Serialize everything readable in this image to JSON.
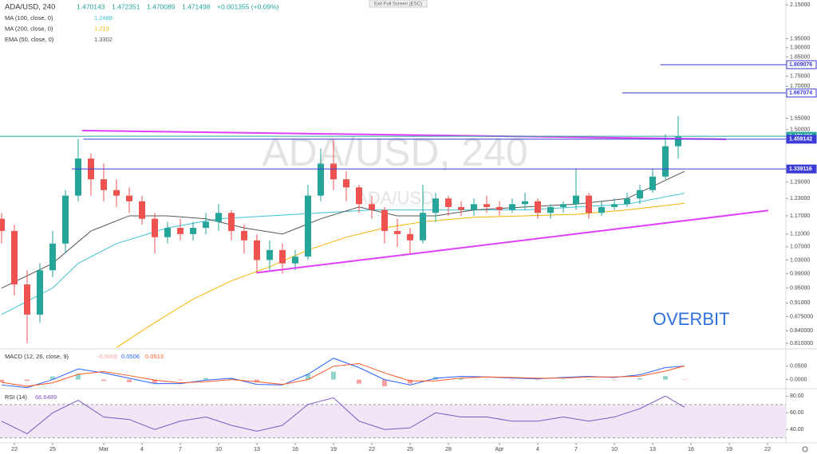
{
  "ui": {
    "exit_button": "Exit Full Screen (ESC)"
  },
  "chart_data": [
    {
      "type": "candlestick",
      "title": "ADA/USD, 240",
      "symbol": "ADA/USD",
      "ohlc": [
        1.470143,
        1.472351,
        1.470089,
        1.471498
      ],
      "change": "+0.001355 (+0.09%)",
      "annotation": "OVERBIT",
      "annotation_color": "#2f6fdc",
      "log_scale": true,
      "grid": false,
      "up_color": "#26a69a",
      "down_color": "#ef5350",
      "x": [
        -1,
        0,
        1,
        2,
        3,
        4,
        5,
        6,
        7,
        8,
        9,
        10,
        11,
        12,
        13,
        14,
        15,
        16,
        17,
        18,
        19,
        20,
        21,
        22,
        23,
        24,
        25,
        26,
        27,
        28,
        29,
        30,
        31,
        32,
        33,
        34,
        35,
        36,
        37,
        38,
        39,
        40,
        41,
        42,
        43,
        44,
        45,
        46,
        47,
        48,
        49,
        50,
        51,
        52
      ],
      "open": [
        1.16,
        1.12,
        0.96,
        0.88,
        1.0,
        1.08,
        1.24,
        1.38,
        1.3,
        1.26,
        1.24,
        1.22,
        1.16,
        1.1,
        1.13,
        1.11,
        1.13,
        1.15,
        1.18,
        1.12,
        1.09,
        1.03,
        1.06,
        1.02,
        1.04,
        1.24,
        1.36,
        1.3,
        1.27,
        1.21,
        1.19,
        1.12,
        1.11,
        1.09,
        1.18,
        1.23,
        1.2,
        1.19,
        1.21,
        1.2,
        1.19,
        1.21,
        1.22,
        1.18,
        1.2,
        1.21,
        1.24,
        1.18,
        1.2,
        1.21,
        1.23,
        1.26,
        1.31,
        1.43
      ],
      "high": [
        1.18,
        1.14,
        1.0,
        1.02,
        1.12,
        1.26,
        1.46,
        1.4,
        1.36,
        1.3,
        1.27,
        1.24,
        1.18,
        1.15,
        1.16,
        1.15,
        1.18,
        1.21,
        1.19,
        1.14,
        1.11,
        1.09,
        1.08,
        1.06,
        1.28,
        1.42,
        1.46,
        1.33,
        1.28,
        1.24,
        1.2,
        1.16,
        1.13,
        1.28,
        1.25,
        1.24,
        1.22,
        1.23,
        1.24,
        1.22,
        1.23,
        1.25,
        1.23,
        1.21,
        1.22,
        1.34,
        1.25,
        1.22,
        1.23,
        1.25,
        1.28,
        1.34,
        1.48,
        1.56
      ],
      "low": [
        1.08,
        0.93,
        0.81,
        0.86,
        0.98,
        1.05,
        1.22,
        1.24,
        1.22,
        1.2,
        1.18,
        1.14,
        1.05,
        1.08,
        1.09,
        1.09,
        1.11,
        1.12,
        1.09,
        1.05,
        0.99,
        1.0,
        0.99,
        1.0,
        1.03,
        1.22,
        1.26,
        1.22,
        1.18,
        1.16,
        1.08,
        1.07,
        1.05,
        1.08,
        1.15,
        1.17,
        1.17,
        1.17,
        1.18,
        1.17,
        1.18,
        1.19,
        1.16,
        1.16,
        1.18,
        1.19,
        1.16,
        1.17,
        1.19,
        1.2,
        1.21,
        1.25,
        1.3,
        1.38
      ],
      "close": [
        1.12,
        0.96,
        0.88,
        1.0,
        1.08,
        1.24,
        1.38,
        1.3,
        1.26,
        1.24,
        1.22,
        1.16,
        1.1,
        1.13,
        1.11,
        1.13,
        1.15,
        1.18,
        1.12,
        1.09,
        1.03,
        1.06,
        1.02,
        1.04,
        1.24,
        1.36,
        1.3,
        1.27,
        1.21,
        1.19,
        1.12,
        1.11,
        1.09,
        1.18,
        1.23,
        1.2,
        1.19,
        1.21,
        1.2,
        1.19,
        1.21,
        1.22,
        1.18,
        1.2,
        1.21,
        1.24,
        1.18,
        1.2,
        1.21,
        1.23,
        1.26,
        1.31,
        1.43,
        1.47
      ],
      "xlim": [
        -1.125,
        60.4375
      ],
      "ylim": [
        0.799,
        2.18
      ],
      "yticks": [
        {
          "value": 2.15,
          "label": "2.15000"
        },
        {
          "value": 1.95,
          "label": "1.95000"
        },
        {
          "value": 1.9,
          "label": "1.90000"
        },
        {
          "value": 1.85,
          "label": "1.85000"
        },
        {
          "value": 1.75,
          "label": "1.75000"
        },
        {
          "value": 1.7,
          "label": "1.70000"
        },
        {
          "value": 1.55,
          "label": "1.55000"
        },
        {
          "value": 1.5,
          "label": "1.50000"
        },
        {
          "value": 1.29,
          "label": "1.29000"
        },
        {
          "value": 1.23,
          "label": "1.23000"
        },
        {
          "value": 1.17,
          "label": "1.17000"
        },
        {
          "value": 1.11,
          "label": "1.11000"
        },
        {
          "value": 1.07,
          "label": "1.07000"
        },
        {
          "value": 1.03,
          "label": "1.03000"
        },
        {
          "value": 0.99,
          "label": "0.99000"
        },
        {
          "value": 0.95,
          "label": "0.95000"
        },
        {
          "value": 0.91,
          "label": "0.91000"
        },
        {
          "value": 0.875,
          "label": "0.875000"
        },
        {
          "value": 0.84,
          "label": "0.840000"
        },
        {
          "value": 0.81,
          "label": "0.810000"
        }
      ],
      "xticks": [
        {
          "value": 0,
          "label": "22"
        },
        {
          "value": 3,
          "label": "25"
        },
        {
          "value": 7,
          "label": "Mar"
        },
        {
          "value": 10,
          "label": "4"
        },
        {
          "value": 13,
          "label": "7"
        },
        {
          "value": 16,
          "label": "10"
        },
        {
          "value": 19,
          "label": "13"
        },
        {
          "value": 22,
          "label": "16"
        },
        {
          "value": 25,
          "label": "19"
        },
        {
          "value": 28,
          "label": "22"
        },
        {
          "value": 31,
          "label": "25"
        },
        {
          "value": 34,
          "label": "28"
        },
        {
          "value": 38,
          "label": "Apr"
        },
        {
          "value": 41,
          "label": "4"
        },
        {
          "value": 44,
          "label": "7"
        },
        {
          "value": 47,
          "label": "10"
        },
        {
          "value": 50,
          "label": "13"
        },
        {
          "value": 53,
          "label": "16"
        },
        {
          "value": 56,
          "label": "19"
        },
        {
          "value": 59,
          "label": "22"
        }
      ],
      "lines": [
        {
          "name": "MA (100, close, 0)",
          "color": "#3bc3d6",
          "x": [
            -1,
            3,
            5,
            8,
            12,
            16,
            20,
            24,
            28,
            32,
            36,
            40,
            44,
            48,
            52.5
          ],
          "values": [
            0.88,
            0.95,
            1.02,
            1.08,
            1.13,
            1.16,
            1.17,
            1.18,
            1.19,
            1.19,
            1.19,
            1.19,
            1.2,
            1.21,
            1.2488
          ]
        },
        {
          "name": "MA (200, close, 0)",
          "color": "#f5b400",
          "x": [
            8,
            11,
            14,
            17,
            20,
            23,
            26,
            29,
            32,
            36,
            40,
            44,
            48,
            52.5
          ],
          "values": [
            0.8,
            0.86,
            0.92,
            0.97,
            1.01,
            1.06,
            1.1,
            1.13,
            1.15,
            1.165,
            1.17,
            1.175,
            1.19,
            1.213
          ]
        },
        {
          "name": "EMA (50, close, 0)",
          "color": "#555555",
          "x": [
            -1,
            3,
            6,
            9,
            12,
            15,
            18,
            21,
            24,
            27,
            30,
            33,
            36,
            40,
            44,
            48,
            52.5
          ],
          "values": [
            0.95,
            1.02,
            1.12,
            1.17,
            1.17,
            1.16,
            1.13,
            1.11,
            1.16,
            1.2,
            1.17,
            1.17,
            1.19,
            1.2,
            1.21,
            1.23,
            1.3302
          ]
        }
      ],
      "trendlines": [
        {
          "color": "#e040fb",
          "x": [
            5.3,
            55.75
          ],
          "values": [
            1.496,
            1.459
          ]
        },
        {
          "color": "#e040fb",
          "x": [
            19,
            59.06
          ],
          "values": [
            0.993,
            1.188
          ]
        }
      ],
      "price_lines": [
        {
          "value": 1.809076,
          "start": 50.6,
          "color": "#3b3bd6",
          "label_style": "outline"
        },
        {
          "value": 1.667074,
          "start": 47.6,
          "color": "#3b3bd6",
          "label_style": "outline"
        },
        {
          "value": 1.471498,
          "start": -1.125,
          "color": "#26a69a",
          "label_style": "filled"
        },
        {
          "value": 1.459142,
          "start": 5.4,
          "color": "#3b3bd6",
          "label_style": "filled"
        },
        {
          "value": 1.339116,
          "start": 4.5,
          "color": "#3b3bd6",
          "label_style": "filled"
        }
      ]
    },
    {
      "type": "macd",
      "title": "MACD (12, 26, close, 9)",
      "xlim": [
        -1.125,
        60.4375
      ],
      "ylim": [
        -0.031,
        0.109
      ],
      "yticks": [
        {
          "value": 0.05,
          "label": "0.0500"
        },
        {
          "value": 0,
          "label": "0.0000"
        }
      ],
      "x": [
        -1,
        1,
        3,
        5,
        7,
        9,
        11,
        13,
        15,
        17,
        19,
        21,
        23,
        25,
        27,
        29,
        31,
        33,
        35,
        37,
        39,
        41,
        43,
        45,
        47,
        49,
        51,
        52.5
      ],
      "histogram": {
        "color_up": "#8fd3ca",
        "color_down": "#f4a3a2",
        "values": [
          -0.01,
          -0.005,
          0.012,
          0.02,
          -0.005,
          -0.01,
          -0.013,
          -0.003,
          0.006,
          0.005,
          -0.01,
          -0.002,
          0.02,
          0.03,
          -0.015,
          -0.025,
          -0.015,
          0.01,
          0.006,
          0.0,
          -0.002,
          -0.002,
          0.002,
          0.002,
          -0.002,
          0.005,
          0.013,
          -0.0006
        ]
      },
      "macd": {
        "color": "#2962ff",
        "values": [
          -0.02,
          -0.03,
          0.0,
          0.04,
          0.025,
          0.005,
          -0.015,
          -0.015,
          -0.002,
          0.005,
          -0.018,
          -0.02,
          0.02,
          0.08,
          0.045,
          0.0,
          -0.02,
          0.005,
          0.012,
          0.01,
          0.006,
          0.003,
          0.008,
          0.012,
          0.008,
          0.018,
          0.045,
          0.0506
        ]
      },
      "signal": {
        "color": "#ff5722",
        "values": [
          -0.01,
          -0.025,
          -0.012,
          0.02,
          0.03,
          0.015,
          -0.002,
          -0.012,
          -0.008,
          0.0,
          -0.008,
          -0.018,
          0.0,
          0.05,
          0.06,
          0.025,
          -0.005,
          -0.005,
          0.006,
          0.01,
          0.008,
          0.005,
          0.006,
          0.01,
          0.01,
          0.013,
          0.032,
          0.0513
        ]
      }
    },
    {
      "type": "line",
      "title": "RSI (14)",
      "color": "#7e57c2",
      "band": [
        30,
        70
      ],
      "band_color": "#f1e6f6",
      "xlim": [
        -1.125,
        60.4375
      ],
      "ylim": [
        25,
        87
      ],
      "yticks": [
        {
          "value": 80,
          "label": "80.00"
        },
        {
          "value": 60,
          "label": "60.00"
        },
        {
          "value": 40,
          "label": "40.00"
        }
      ],
      "x": [
        -1,
        1,
        3,
        5,
        7,
        9,
        11,
        13,
        15,
        17,
        19,
        21,
        23,
        25,
        27,
        29,
        31,
        33,
        35,
        37,
        39,
        41,
        43,
        45,
        47,
        49,
        51,
        52.5
      ],
      "values": [
        50,
        35,
        60,
        75,
        55,
        52,
        40,
        50,
        55,
        45,
        38,
        45,
        70,
        78,
        50,
        40,
        42,
        60,
        55,
        55,
        50,
        50,
        55,
        50,
        55,
        65,
        80,
        66.6489
      ]
    }
  ]
}
